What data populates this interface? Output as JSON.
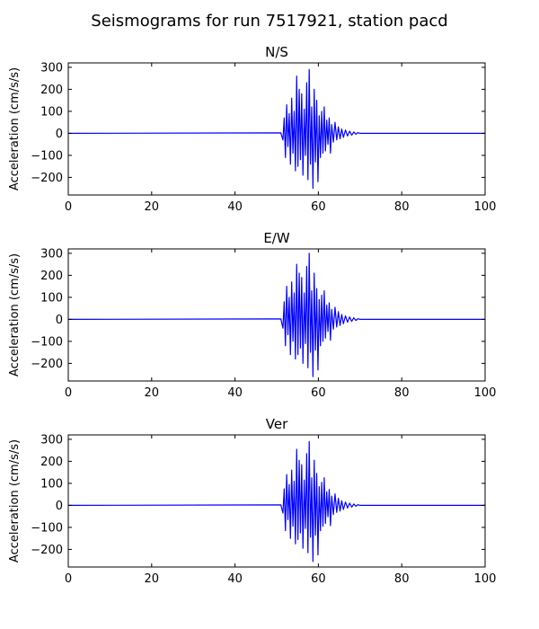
{
  "figure": {
    "title": "Seismograms for run 7517921, station pacd",
    "trace_color": "#0000ff"
  },
  "chart_data": [
    {
      "type": "line",
      "title": "N/S",
      "xlabel": "",
      "ylabel": "Acceleration (cm/s/s)",
      "xlim": [
        0,
        100
      ],
      "ylim": [
        -280,
        320
      ],
      "xticks": [
        0,
        20,
        40,
        60,
        80,
        100
      ],
      "yticks": [
        -200,
        -100,
        0,
        100,
        200,
        300
      ],
      "grid": false,
      "series": [
        {
          "color": "#0000ff",
          "x": [
            0,
            51,
            51.5,
            51.8,
            52.1,
            52.4,
            52.7,
            53,
            53.3,
            53.6,
            53.9,
            54.2,
            54.5,
            54.8,
            55.1,
            55.4,
            55.7,
            56,
            56.3,
            56.6,
            56.9,
            57.2,
            57.5,
            57.8,
            58.1,
            58.4,
            58.7,
            59,
            59.3,
            59.6,
            59.9,
            60.2,
            60.5,
            60.8,
            61.1,
            61.4,
            61.7,
            62,
            62.3,
            62.6,
            62.9,
            63.2,
            63.6,
            64,
            64.4,
            64.8,
            65.2,
            65.6,
            66,
            66.5,
            67,
            67.5,
            68,
            68.5,
            69,
            69.5,
            70,
            100
          ],
          "y": [
            0,
            2,
            -30,
            70,
            -110,
            130,
            -60,
            90,
            -140,
            160,
            -90,
            100,
            -170,
            260,
            -150,
            200,
            -120,
            180,
            -190,
            110,
            -100,
            230,
            -210,
            290,
            -140,
            120,
            -250,
            200,
            -130,
            150,
            -220,
            80,
            -110,
            100,
            -90,
            120,
            -80,
            60,
            -50,
            70,
            -90,
            40,
            -40,
            50,
            -30,
            30,
            -25,
            20,
            -18,
            15,
            -12,
            10,
            -8,
            6,
            -4,
            3,
            0,
            0
          ]
        }
      ]
    },
    {
      "type": "line",
      "title": "E/W",
      "xlabel": "",
      "ylabel": "Acceleration (cm/s/s)",
      "xlim": [
        0,
        100
      ],
      "ylim": [
        -280,
        320
      ],
      "xticks": [
        0,
        20,
        40,
        60,
        80,
        100
      ],
      "yticks": [
        -200,
        -100,
        0,
        100,
        200,
        300
      ],
      "grid": false,
      "series": [
        {
          "color": "#0000ff",
          "x": [
            0,
            51,
            51.5,
            51.8,
            52.1,
            52.4,
            52.7,
            53,
            53.3,
            53.6,
            53.9,
            54.2,
            54.5,
            54.8,
            55.1,
            55.4,
            55.7,
            56,
            56.3,
            56.6,
            56.9,
            57.2,
            57.5,
            57.8,
            58.1,
            58.4,
            58.7,
            59,
            59.3,
            59.6,
            59.9,
            60.2,
            60.5,
            60.8,
            61.1,
            61.4,
            61.7,
            62,
            62.3,
            62.6,
            62.9,
            63.2,
            63.6,
            64,
            64.4,
            64.8,
            65.2,
            65.6,
            66,
            66.5,
            67,
            67.5,
            68,
            68.5,
            69,
            69.5,
            70,
            100
          ],
          "y": [
            0,
            2,
            -40,
            80,
            -120,
            150,
            -70,
            100,
            -160,
            170,
            -100,
            120,
            -180,
            250,
            -160,
            210,
            -130,
            190,
            -200,
            120,
            -110,
            240,
            -220,
            300,
            -150,
            130,
            -260,
            210,
            -140,
            140,
            -230,
            90,
            -120,
            110,
            -100,
            130,
            -85,
            65,
            -55,
            75,
            -95,
            45,
            -45,
            55,
            -35,
            35,
            -28,
            22,
            -20,
            16,
            -13,
            11,
            -9,
            7,
            -5,
            3,
            0,
            0
          ]
        }
      ]
    },
    {
      "type": "line",
      "title": "Ver",
      "xlabel": "",
      "ylabel": "Acceleration (cm/s/s)",
      "xlim": [
        0,
        100
      ],
      "ylim": [
        -280,
        320
      ],
      "xticks": [
        0,
        20,
        40,
        60,
        80,
        100
      ],
      "yticks": [
        -200,
        -100,
        0,
        100,
        200,
        300
      ],
      "grid": false,
      "series": [
        {
          "color": "#0000ff",
          "x": [
            0,
            51,
            51.5,
            51.8,
            52.1,
            52.4,
            52.7,
            53,
            53.3,
            53.6,
            53.9,
            54.2,
            54.5,
            54.8,
            55.1,
            55.4,
            55.7,
            56,
            56.3,
            56.6,
            56.9,
            57.2,
            57.5,
            57.8,
            58.1,
            58.4,
            58.7,
            59,
            59.3,
            59.6,
            59.9,
            60.2,
            60.5,
            60.8,
            61.1,
            61.4,
            61.7,
            62,
            62.3,
            62.6,
            62.9,
            63.2,
            63.6,
            64,
            64.4,
            64.8,
            65.2,
            65.6,
            66,
            66.5,
            67,
            67.5,
            68,
            68.5,
            69,
            69.5,
            70,
            100
          ],
          "y": [
            0,
            2,
            -35,
            75,
            -115,
            140,
            -65,
            95,
            -150,
            160,
            -95,
            110,
            -175,
            255,
            -155,
            205,
            -125,
            185,
            -195,
            115,
            -105,
            235,
            -215,
            290,
            -145,
            125,
            -255,
            205,
            -135,
            145,
            -225,
            85,
            -115,
            105,
            -95,
            125,
            -82,
            62,
            -52,
            72,
            -92,
            42,
            -42,
            52,
            -32,
            32,
            -26,
            21,
            -19,
            15,
            -12,
            10,
            -8,
            6,
            -4,
            3,
            0,
            0
          ]
        }
      ]
    }
  ]
}
